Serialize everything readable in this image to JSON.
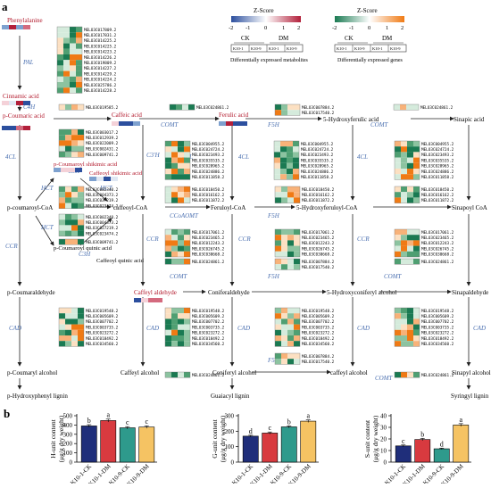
{
  "panel_a": {
    "label": "a",
    "legends": {
      "metabolites": {
        "title": "Z-Score",
        "ticks": [
          "-2",
          "-1",
          "0",
          "1",
          "2"
        ],
        "groups": [
          "CK",
          "DM"
        ],
        "cols": [
          "K10-1",
          "K10-9",
          "K10-1",
          "K10-9"
        ],
        "caption": "Differentially expressed metabolites"
      },
      "genes": {
        "title": "Z-Score",
        "ticks": [
          "-2",
          "-1",
          "0",
          "1",
          "2"
        ],
        "groups": [
          "CK",
          "DM"
        ],
        "cols": [
          "K10-1",
          "K10-9",
          "K10-1",
          "K10-9"
        ],
        "caption": "Differentially expressed genes"
      }
    },
    "compounds": [
      {
        "text": "Phenylalanine",
        "red": true
      },
      {
        "text": "Cinnamic  acid",
        "red": true
      },
      {
        "text": "p-Coumaric acid",
        "red": true
      },
      {
        "text": "Caffeic acid",
        "red": true
      },
      {
        "text": "Ferulic acid",
        "red": true
      },
      {
        "text": "5-Hydroxyferulic acid",
        "red": false
      },
      {
        "text": "Sinapic acid",
        "red": false
      },
      {
        "text": "p-Coumaroyl shikimic acid",
        "red": true
      },
      {
        "text": "Caffeoyl shikimic acid",
        "red": true
      },
      {
        "text": "p-coumaroyl-CoA",
        "red": false
      },
      {
        "text": "caffeoyl-CoA",
        "red": false
      },
      {
        "text": "Feruloyl-CoA",
        "red": false
      },
      {
        "text": "5-Hydroxyferuloyl-CoA",
        "red": false
      },
      {
        "text": "Sinapoyl CoA",
        "red": false
      },
      {
        "text": "p-Coumaroyl quinic acid",
        "red": false
      },
      {
        "text": "Caffeoyl quinic acid",
        "red": false
      },
      {
        "text": "p-Coumaraldehyde",
        "red": false
      },
      {
        "text": "Caffeyl aldehyde",
        "red": true
      },
      {
        "text": "Coniferaldehyde",
        "red": false
      },
      {
        "text": "5-Hydroxyconiferyl alcohol",
        "red": false
      },
      {
        "text": "Sinapaldehyde",
        "red": false
      },
      {
        "text": "p-Coumaryl alcohol",
        "red": false
      },
      {
        "text": "Caffeyl alcohol",
        "red": false
      },
      {
        "text": "Coniferyl alcohol",
        "red": false
      },
      {
        "text": "caffeyl alcohol",
        "red": false
      },
      {
        "text": "Sinapyl alcohol",
        "red": false
      },
      {
        "text": "p-Hydroxyphenyl lignin",
        "red": false
      },
      {
        "text": "Guaiacyl lignin",
        "red": false
      },
      {
        "text": "Syringyl lignin",
        "red": false
      }
    ],
    "enzymes": [
      "PAL",
      "C4H",
      "COMT",
      "F5H",
      "COMT",
      "4CL",
      "C3H",
      "HCT",
      "HCT",
      "C3'H",
      "4CL",
      "CCoAOMT",
      "F5H",
      "4CL",
      "4CL",
      "HCT",
      "CCR",
      "C3H",
      "CCR",
      "CCR",
      "CCR",
      "COMT",
      "F5H",
      "COMT",
      "CAD",
      "CAD",
      "CAD",
      "CAD",
      "CAD",
      "F5H",
      "COMT"
    ],
    "gene_lists": {
      "pal": [
        "MELO3C017809.2",
        "MELO3C017831.2",
        "MELO3C014225.2",
        "MELO3C014225.2",
        "MELO3C014223.2",
        "MELO3C014226.2",
        "MELO3C019809.2",
        "MELO3C014227.2",
        "MELO3C014229.2",
        "MELO3C014224.2",
        "MELO3C025786.2",
        "MELO3C014228.2"
      ],
      "c4h": [
        "MELO3C019585.2"
      ],
      "comt_row": [
        "MELO3C007884.2",
        "MELO3C017540.2"
      ],
      "comt1": [
        "MELO3C024861.2"
      ],
      "comt_end": [
        "MELO3C024861.2"
      ],
      "hct_up": [
        "MELO3C003017.2",
        "MELO3C012939.2",
        "MELO3C022009.2",
        "MELO3C002431.2"
      ],
      "c3h": [
        "MELO3C009741.2"
      ],
      "hct_low": [
        "MELO3C002340.2",
        "MELO3C004373.2",
        "MELO3C027219.2",
        "MELO3C023474.2"
      ],
      "cl4": [
        "MELO3C004955.2",
        "MELO3C024724.2",
        "MELO3C023493.2",
        "MELO3C035535.2",
        "MELO3C028965.2",
        "MELO3C024886.2",
        "MELO3C011858.2"
      ],
      "ccoaomt": [
        "MELO3C018450.2",
        "MELO3C016162.2",
        "MELO3C011872.2"
      ],
      "ccr": [
        "MELO3C017061.2",
        "MELO3C023465.2",
        "MELO3C012243.2",
        "MELO3C026745.2",
        "MELO3C030668.2"
      ],
      "cad": [
        "MELO3C019548.2",
        "MELO3C005609.2",
        "MELO3C007702.2",
        "MELO3C003735.2",
        "MELO3C023272.2",
        "MELO3C018492.2",
        "MELO3C034560.2"
      ]
    }
  },
  "panel_b": {
    "label": "b",
    "charts": [
      {
        "ylabel": "H-unit content",
        "ylabel2": "(μg/g dry weight)"
      },
      {
        "ylabel": "G-unit content",
        "ylabel2": "(μg/g dry weight)"
      },
      {
        "ylabel": "S-unit content",
        "ylabel2": "(μg/g dry weight)"
      }
    ]
  },
  "chart_data": [
    {
      "type": "bar",
      "categories": [
        "K10-1-CK",
        "K10-1-DM",
        "K10-9-CK",
        "K10-9-DM"
      ],
      "values": [
        390,
        448,
        370,
        378
      ],
      "errors": [
        14,
        16,
        13,
        14
      ],
      "letters": [
        "b",
        "a",
        "c",
        "c"
      ],
      "colors": [
        "#1f2e7a",
        "#d83a3f",
        "#2e9a8c",
        "#f5c363"
      ],
      "ylabel": "H-unit content (μg/g dry weight)",
      "ylim": [
        0,
        500
      ],
      "yticks": [
        "0",
        "100",
        "200",
        "300",
        "400",
        "500"
      ]
    },
    {
      "type": "bar",
      "categories": [
        "K10-1-CK",
        "K10-1-DM",
        "K10-9-CK",
        "K10-9-DM"
      ],
      "values": [
        168,
        188,
        228,
        265
      ],
      "errors": [
        6,
        7,
        7,
        8
      ],
      "letters": [
        "d",
        "c",
        "b",
        "a"
      ],
      "colors": [
        "#1f2e7a",
        "#d83a3f",
        "#2e9a8c",
        "#f5c363"
      ],
      "ylabel": "G-unit content (μg/g dry weight)",
      "ylim": [
        0,
        300
      ],
      "yticks": [
        "0",
        "100",
        "200",
        "300"
      ]
    },
    {
      "type": "bar",
      "categories": [
        "K10-1-CK",
        "K10-1-DM",
        "K10-9-CK",
        "K10-9-DM"
      ],
      "values": [
        14,
        19.5,
        11.5,
        32
      ],
      "errors": [
        0.8,
        1.0,
        0.6,
        1.2
      ],
      "letters": [
        "c",
        "b",
        "d",
        "a"
      ],
      "colors": [
        "#1f2e7a",
        "#d83a3f",
        "#2e9a8c",
        "#f5c363"
      ],
      "ylabel": "S-unit content (μg/g dry weight)",
      "ylim": [
        0,
        40
      ],
      "yticks": [
        "0",
        "10",
        "20",
        "30",
        "40"
      ]
    }
  ]
}
